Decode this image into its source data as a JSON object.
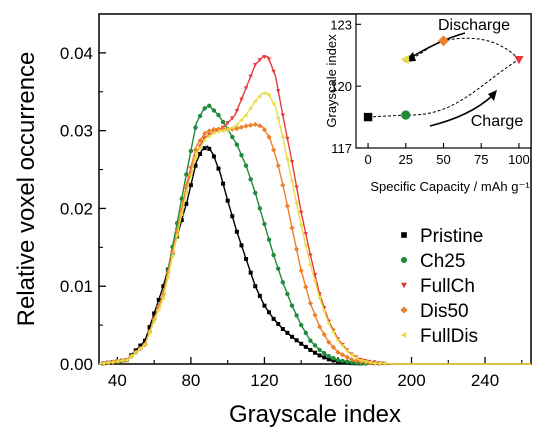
{
  "chart_data": [
    {
      "type": "line",
      "xlabel": "Grayscale index",
      "ylabel": "Relative voxel occurrence",
      "xlim": [
        30,
        265
      ],
      "ylim": [
        0,
        0.045
      ],
      "xticks": [
        "40",
        "80",
        "120",
        "160",
        "200",
        "240"
      ],
      "yticks": [
        "0.00",
        "0.01",
        "0.02",
        "0.03",
        "0.04"
      ],
      "grid": false,
      "legend_position": "bottom-right",
      "series": [
        {
          "name": "Pristine",
          "color": "#000000",
          "marker": "square",
          "points": [
            [
              30,
              0
            ],
            [
              45,
              0.0005
            ],
            [
              55,
              0.003
            ],
            [
              65,
              0.01
            ],
            [
              72,
              0.016
            ],
            [
              78,
              0.021
            ],
            [
              83,
              0.026
            ],
            [
              86,
              0.0275
            ],
            [
              89,
              0.028
            ],
            [
              92,
              0.027
            ],
            [
              96,
              0.0245
            ],
            [
              100,
              0.021
            ],
            [
              105,
              0.017
            ],
            [
              110,
              0.0135
            ],
            [
              115,
              0.01
            ],
            [
              120,
              0.0075
            ],
            [
              125,
              0.0058
            ],
            [
              130,
              0.0045
            ],
            [
              135,
              0.0035
            ],
            [
              140,
              0.0026
            ],
            [
              145,
              0.0018
            ],
            [
              150,
              0.0011
            ],
            [
              155,
              0.0006
            ],
            [
              160,
              0.0003
            ],
            [
              168,
              0.0001
            ],
            [
              180,
              0
            ],
            [
              265,
              0
            ]
          ]
        },
        {
          "name": "Ch25",
          "color": "#1e8c3a",
          "marker": "circle",
          "points": [
            [
              30,
              0
            ],
            [
              45,
              0.0005
            ],
            [
              55,
              0.0025
            ],
            [
              65,
              0.009
            ],
            [
              72,
              0.0175
            ],
            [
              78,
              0.025
            ],
            [
              83,
              0.031
            ],
            [
              87,
              0.0328
            ],
            [
              90,
              0.0332
            ],
            [
              95,
              0.032
            ],
            [
              100,
              0.0302
            ],
            [
              105,
              0.0282
            ],
            [
              110,
              0.0255
            ],
            [
              115,
              0.022
            ],
            [
              120,
              0.018
            ],
            [
              125,
              0.014
            ],
            [
              130,
              0.0105
            ],
            [
              135,
              0.0075
            ],
            [
              140,
              0.005
            ],
            [
              145,
              0.003
            ],
            [
              150,
              0.0018
            ],
            [
              155,
              0.001
            ],
            [
              160,
              0.0005
            ],
            [
              170,
              0.0001
            ],
            [
              180,
              0
            ],
            [
              265,
              0
            ]
          ]
        },
        {
          "name": "FullCh",
          "color": "#e83a3a",
          "marker": "triangle-down",
          "points": [
            [
              30,
              0
            ],
            [
              45,
              0.0005
            ],
            [
              55,
              0.0025
            ],
            [
              65,
              0.009
            ],
            [
              72,
              0.0165
            ],
            [
              78,
              0.023
            ],
            [
              83,
              0.027
            ],
            [
              87,
              0.029
            ],
            [
              92,
              0.0298
            ],
            [
              98,
              0.0305
            ],
            [
              104,
              0.032
            ],
            [
              110,
              0.0355
            ],
            [
              115,
              0.0385
            ],
            [
              119,
              0.0395
            ],
            [
              122,
              0.0395
            ],
            [
              126,
              0.037
            ],
            [
              130,
              0.032
            ],
            [
              135,
              0.026
            ],
            [
              140,
              0.0195
            ],
            [
              145,
              0.014
            ],
            [
              150,
              0.009
            ],
            [
              155,
              0.0055
            ],
            [
              160,
              0.0032
            ],
            [
              166,
              0.0015
            ],
            [
              172,
              0.0006
            ],
            [
              180,
              0.0002
            ],
            [
              190,
              0
            ],
            [
              265,
              0
            ]
          ]
        },
        {
          "name": "Dis50",
          "color": "#f07f2a",
          "marker": "diamond",
          "points": [
            [
              30,
              0
            ],
            [
              45,
              0.0005
            ],
            [
              55,
              0.0025
            ],
            [
              65,
              0.009
            ],
            [
              72,
              0.0165
            ],
            [
              78,
              0.0235
            ],
            [
              83,
              0.028
            ],
            [
              88,
              0.0298
            ],
            [
              93,
              0.0302
            ],
            [
              98,
              0.0302
            ],
            [
              104,
              0.0302
            ],
            [
              110,
              0.0306
            ],
            [
              115,
              0.0308
            ],
            [
              119,
              0.0305
            ],
            [
              123,
              0.029
            ],
            [
              127,
              0.026
            ],
            [
              131,
              0.022
            ],
            [
              135,
              0.0175
            ],
            [
              140,
              0.012
            ],
            [
              145,
              0.0078
            ],
            [
              150,
              0.0048
            ],
            [
              155,
              0.0028
            ],
            [
              160,
              0.0015
            ],
            [
              168,
              0.0005
            ],
            [
              178,
              0.0001
            ],
            [
              190,
              0
            ],
            [
              265,
              0
            ]
          ]
        },
        {
          "name": "FullDis",
          "color": "#e8dc45",
          "marker": "triangle-left",
          "points": [
            [
              30,
              0
            ],
            [
              45,
              0.0005
            ],
            [
              55,
              0.0025
            ],
            [
              65,
              0.0085
            ],
            [
              72,
              0.016
            ],
            [
              78,
              0.0225
            ],
            [
              83,
              0.027
            ],
            [
              88,
              0.029
            ],
            [
              93,
              0.0298
            ],
            [
              98,
              0.03
            ],
            [
              104,
              0.0305
            ],
            [
              110,
              0.032
            ],
            [
              115,
              0.0338
            ],
            [
              119,
              0.0348
            ],
            [
              122,
              0.0348
            ],
            [
              126,
              0.033
            ],
            [
              130,
              0.0292
            ],
            [
              135,
              0.0235
            ],
            [
              140,
              0.0178
            ],
            [
              145,
              0.0128
            ],
            [
              150,
              0.0085
            ],
            [
              155,
              0.0052
            ],
            [
              160,
              0.003
            ],
            [
              166,
              0.0014
            ],
            [
              172,
              0.0005
            ],
            [
              180,
              0.0001
            ],
            [
              190,
              0
            ],
            [
              265,
              0
            ]
          ]
        }
      ]
    },
    {
      "type": "scatter",
      "xlabel": "Specific Capacity / mAh g⁻¹",
      "ylabel": "Grayscale index",
      "xlim": [
        -8,
        108
      ],
      "ylim": [
        117,
        123.5
      ],
      "xticks": [
        "0",
        "25",
        "50",
        "75",
        "100"
      ],
      "yticks": [
        "117",
        "120",
        "123"
      ],
      "points": [
        {
          "label": "Pristine",
          "x": 0,
          "y": 118.5,
          "color": "#000000",
          "marker": "square"
        },
        {
          "label": "Ch25",
          "x": 25,
          "y": 118.6,
          "color": "#1e8c3a",
          "marker": "circle"
        },
        {
          "label": "FullCh",
          "x": 100,
          "y": 121.3,
          "color": "#e83a3a",
          "marker": "triangle-down"
        },
        {
          "label": "Dis50",
          "x": 50,
          "y": 122.2,
          "color": "#f07f2a",
          "marker": "diamond"
        },
        {
          "label": "FullDis",
          "x": 25,
          "y": 121.3,
          "color": "#e8dc45",
          "marker": "triangle-left"
        }
      ],
      "annotations": [
        "Discharge",
        "Charge"
      ]
    }
  ]
}
